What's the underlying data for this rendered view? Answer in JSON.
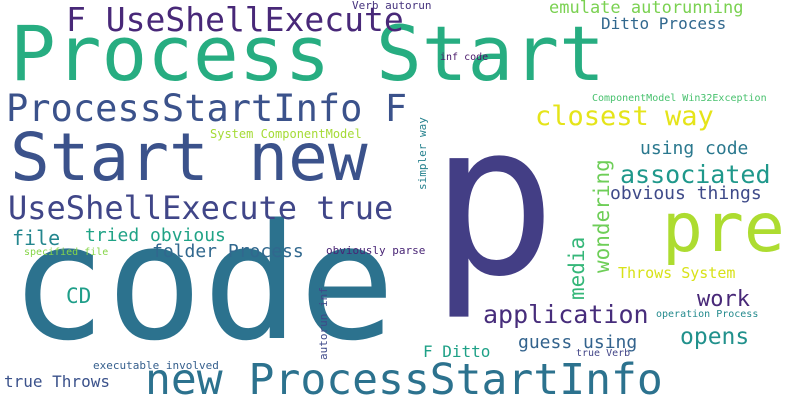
{
  "words": [
    {
      "id": "process-start",
      "text": "Process Start",
      "color": "#27ad81"
    },
    {
      "id": "code",
      "text": "code",
      "color": "#2c728e"
    },
    {
      "id": "p",
      "text": "p",
      "color": "#433e85"
    },
    {
      "id": "start-new",
      "text": "Start new",
      "color": "#3b528b"
    },
    {
      "id": "new-processstartinfo",
      "text": "new ProcessStartInfo",
      "color": "#2c728e"
    },
    {
      "id": "pre",
      "text": "pre",
      "color": "#addc30"
    },
    {
      "id": "processstartinfo-f",
      "text": "ProcessStartInfo F",
      "color": "#3b528b"
    },
    {
      "id": "f-useshellexecute",
      "text": "F UseShellExecute",
      "color": "#482878"
    },
    {
      "id": "useshellexecute-true",
      "text": "UseShellExecute true",
      "color": "#404688"
    },
    {
      "id": "closest-way",
      "text": "closest way",
      "color": "#e5e419"
    },
    {
      "id": "associated",
      "text": "associated",
      "color": "#1f988b"
    },
    {
      "id": "application",
      "text": "application",
      "color": "#472d7b"
    },
    {
      "id": "opens",
      "text": "opens",
      "color": "#21918c"
    },
    {
      "id": "work",
      "text": "work",
      "color": "#482878"
    },
    {
      "id": "cd",
      "text": "CD",
      "color": "#1f9e89"
    },
    {
      "id": "file",
      "text": "file",
      "color": "#24868e"
    },
    {
      "id": "tried-obvious",
      "text": "tried obvious",
      "color": "#20a386"
    },
    {
      "id": "folder-process",
      "text": "folder Process",
      "color": "#31688e"
    },
    {
      "id": "media",
      "text": "media",
      "color": "#35b779"
    },
    {
      "id": "wondering",
      "text": "wondering",
      "color": "#6ece58"
    },
    {
      "id": "using-code",
      "text": "using code",
      "color": "#2a788e"
    },
    {
      "id": "obvious-things",
      "text": "obvious things",
      "color": "#3e4a89"
    },
    {
      "id": "guess-using",
      "text": "guess using",
      "color": "#33638d"
    },
    {
      "id": "emulate-autorunning",
      "text": "emulate autorunning",
      "color": "#7ad151"
    },
    {
      "id": "ditto-process",
      "text": "Ditto Process",
      "color": "#31688e"
    },
    {
      "id": "throws-system",
      "text": "Throws System",
      "color": "#d8e219"
    },
    {
      "id": "f-ditto",
      "text": "F Ditto",
      "color": "#1fa187"
    },
    {
      "id": "true-throws",
      "text": "true Throws",
      "color": "#3b528b"
    },
    {
      "id": "system-componentmodel",
      "text": "System ComponentModel",
      "color": "#a5db36"
    },
    {
      "id": "componentmodel-win32exception",
      "text": "ComponentModel Win32Exception",
      "color": "#48c16e"
    },
    {
      "id": "verb-autorun",
      "text": "Verb autorun",
      "color": "#46337e"
    },
    {
      "id": "inf-code",
      "text": "inf code",
      "color": "#481769"
    },
    {
      "id": "simpler-way",
      "text": "simpler way",
      "color": "#26828e"
    },
    {
      "id": "specified-file",
      "text": "specified file",
      "color": "#86d549"
    },
    {
      "id": "obviously-parse",
      "text": "obviously parse",
      "color": "#482475"
    },
    {
      "id": "autorun-inf",
      "text": "autorun inf",
      "color": "#3e4989"
    },
    {
      "id": "operation-process",
      "text": "operation Process",
      "color": "#238a8d"
    },
    {
      "id": "executable-involved",
      "text": "executable involved",
      "color": "#355f8d"
    },
    {
      "id": "true-verb",
      "text": "true Verb",
      "color": "#414487"
    }
  ]
}
